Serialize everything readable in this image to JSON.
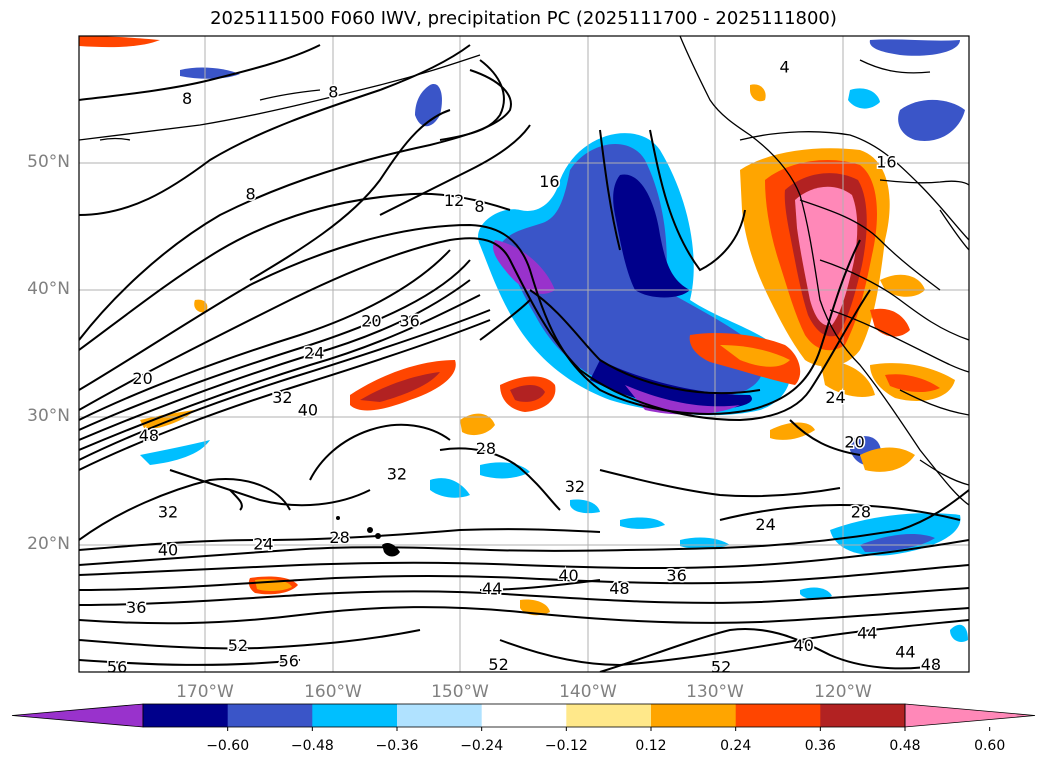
{
  "title": "2025111500 F060 IWV, precipitation PC (2025111700 - 2025111800)",
  "lat_ticks": [
    "50°N",
    "40°N",
    "30°N",
    "20°N"
  ],
  "lon_ticks": [
    "170°W",
    "160°W",
    "150°W",
    "140°W",
    "130°W",
    "120°W"
  ],
  "colorbar": {
    "labels": [
      "−0.60",
      "−0.48",
      "−0.36",
      "−0.24",
      "−0.12",
      "0.12",
      "0.24",
      "0.36",
      "0.48",
      "0.60"
    ],
    "colors": [
      "#9932cc",
      "#00008b",
      "#3a55c8",
      "#00bfff",
      "#b0e2ff",
      "#ffffff",
      "#ffe88a",
      "#ffa500",
      "#ff4500",
      "#b22222",
      "#ff88b8"
    ]
  },
  "contour_labels": [
    {
      "text": "8",
      "lon": -171.5,
      "lat": 55.0
    },
    {
      "text": "8",
      "lon": -166.5,
      "lat": 47.5
    },
    {
      "text": "12",
      "lon": -150.5,
      "lat": 47.0
    },
    {
      "text": "8",
      "lon": -148.5,
      "lat": 46.5
    },
    {
      "text": "16",
      "lon": -143.0,
      "lat": 48.5
    },
    {
      "text": "20",
      "lon": -175.0,
      "lat": 33.0
    },
    {
      "text": "24",
      "lon": -161.5,
      "lat": 35.0
    },
    {
      "text": "20",
      "lon": -157.0,
      "lat": 37.5
    },
    {
      "text": "36",
      "lon": -154.0,
      "lat": 37.5
    },
    {
      "text": "32",
      "lon": -164.0,
      "lat": 31.5
    },
    {
      "text": "40",
      "lon": -162.0,
      "lat": 30.5
    },
    {
      "text": "48",
      "lon": -174.5,
      "lat": 28.5
    },
    {
      "text": "28",
      "lon": -148.0,
      "lat": 27.5
    },
    {
      "text": "32",
      "lon": -155.0,
      "lat": 25.5
    },
    {
      "text": "32",
      "lon": -141.0,
      "lat": 24.5
    },
    {
      "text": "32",
      "lon": -173.0,
      "lat": 22.5
    },
    {
      "text": "24",
      "lon": -165.5,
      "lat": 20.0
    },
    {
      "text": "28",
      "lon": -159.5,
      "lat": 20.5
    },
    {
      "text": "40",
      "lon": -173.0,
      "lat": 19.5
    },
    {
      "text": "44",
      "lon": -147.5,
      "lat": 16.5
    },
    {
      "text": "40",
      "lon": -141.5,
      "lat": 17.5
    },
    {
      "text": "48",
      "lon": -137.5,
      "lat": 16.5
    },
    {
      "text": "36",
      "lon": -133.0,
      "lat": 17.5
    },
    {
      "text": "24",
      "lon": -126.0,
      "lat": 21.5
    },
    {
      "text": "28",
      "lon": -118.5,
      "lat": 22.5
    },
    {
      "text": "24",
      "lon": -120.5,
      "lat": 31.5
    },
    {
      "text": "20",
      "lon": -119.0,
      "lat": 28.0
    },
    {
      "text": "36",
      "lon": -175.5,
      "lat": 15.0
    },
    {
      "text": "52",
      "lon": -167.5,
      "lat": 12.0
    },
    {
      "text": "56",
      "lon": -163.5,
      "lat": 10.8
    },
    {
      "text": "52",
      "lon": -147.0,
      "lat": 10.5
    },
    {
      "text": "52",
      "lon": -129.5,
      "lat": 10.3
    },
    {
      "text": "40",
      "lon": -123.0,
      "lat": 12.0
    },
    {
      "text": "44",
      "lon": -118.0,
      "lat": 13.0
    },
    {
      "text": "44",
      "lon": -115.0,
      "lat": 11.5
    },
    {
      "text": "48",
      "lon": -113.0,
      "lat": 10.5
    },
    {
      "text": "56",
      "lon": -177.0,
      "lat": 10.3
    },
    {
      "text": "16",
      "lon": -116.5,
      "lat": 50.0
    },
    {
      "text": "4",
      "lon": -124.5,
      "lat": 57.5
    },
    {
      "text": "8",
      "lon": -160.0,
      "lat": 55.5
    }
  ]
}
